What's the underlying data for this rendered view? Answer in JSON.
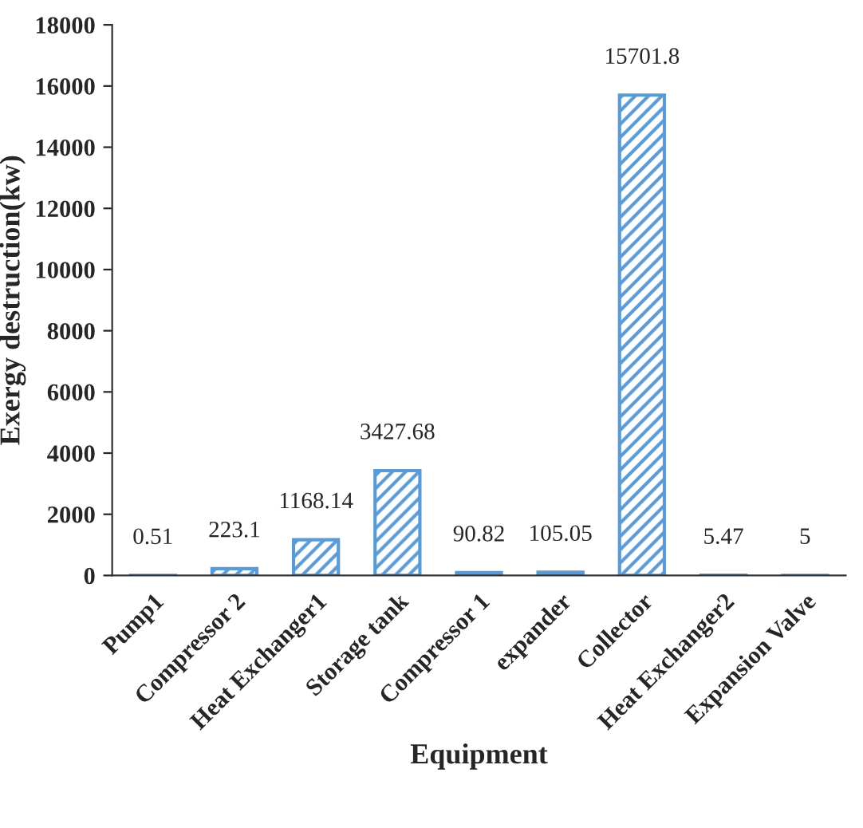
{
  "chart_data": {
    "type": "bar",
    "xlabel": "Equipment",
    "ylabel": "Exergy destruction(kw)",
    "categories": [
      "Pump1",
      "Compressor 2",
      "Heat Exchanger1",
      "Storage tank",
      "Compressor 1",
      "expander",
      "Collector",
      "Heat Exchanger2",
      "Expansion Valve"
    ],
    "values": [
      0.51,
      223.1,
      1168.14,
      3427.68,
      90.82,
      105.05,
      15701.8,
      5.47,
      5
    ],
    "color": "#5b9bd5",
    "ylim": [
      0,
      18000
    ],
    "yticks": [
      0,
      2000,
      4000,
      6000,
      8000,
      10000,
      12000,
      14000,
      16000,
      18000
    ],
    "data_labels": true,
    "grid": false,
    "legend": false
  }
}
